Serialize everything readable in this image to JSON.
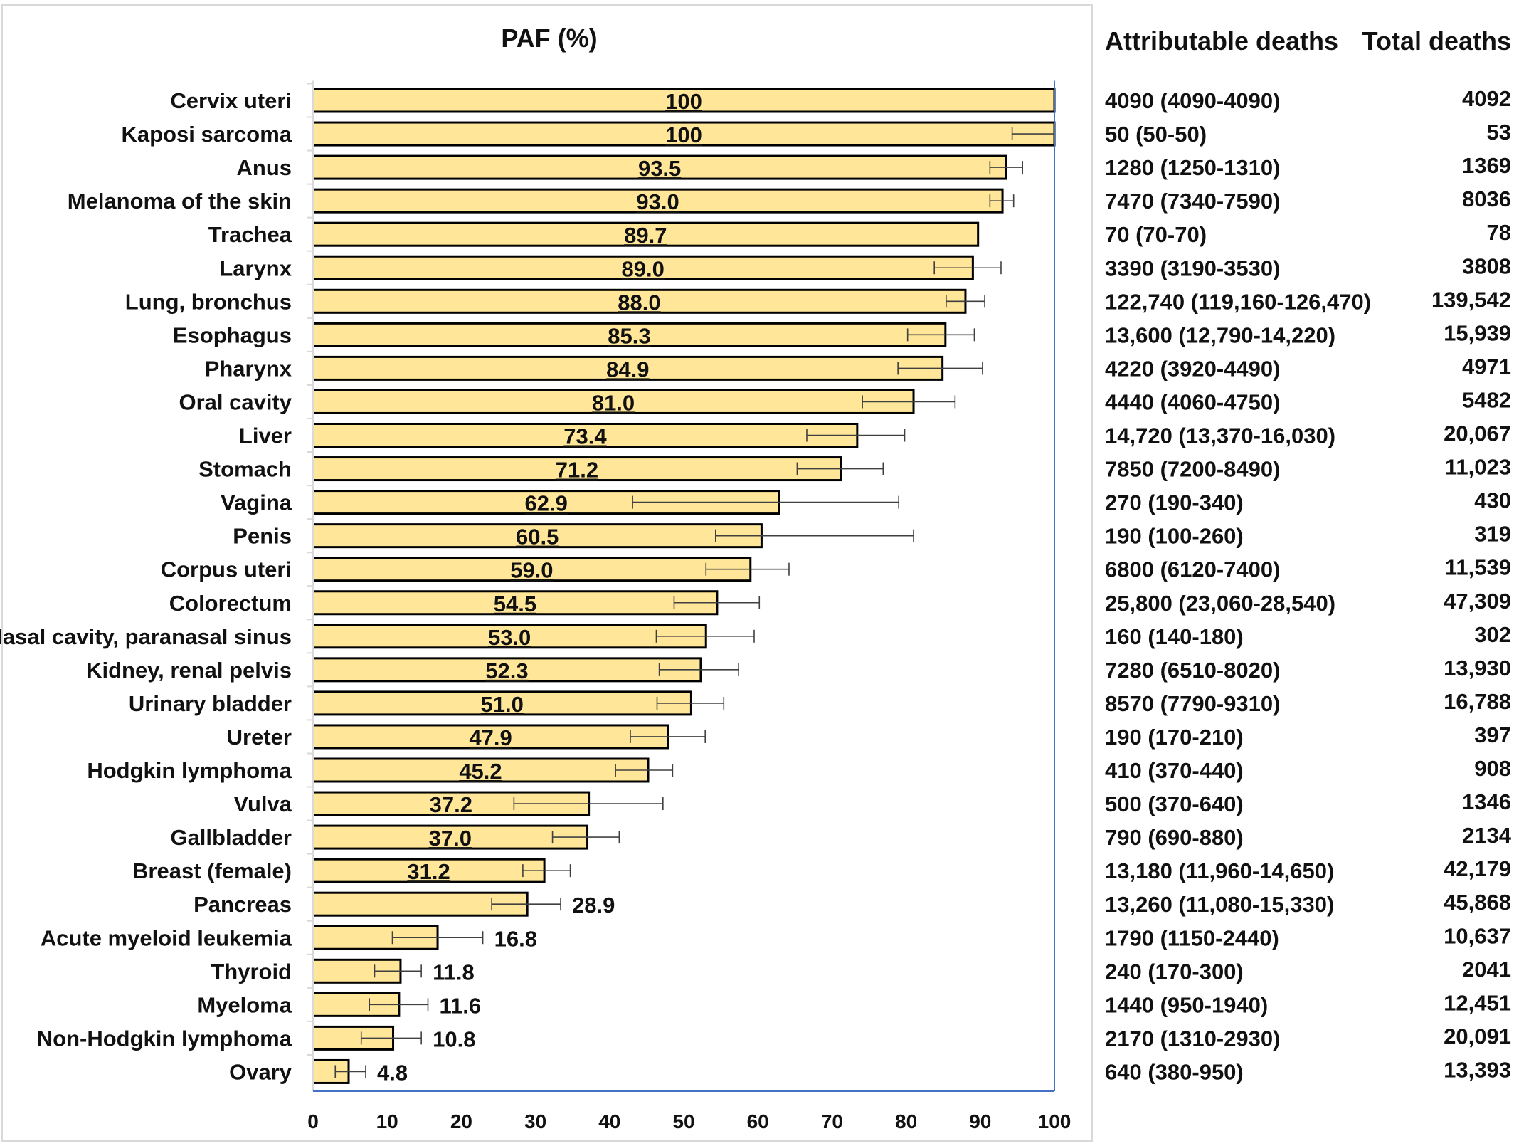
{
  "chart_data": {
    "type": "bar",
    "orientation": "horizontal",
    "title": "PAF (%)",
    "xlim": [
      0,
      100
    ],
    "xticks": [
      0,
      10,
      20,
      30,
      40,
      50,
      60,
      70,
      80,
      90,
      100
    ],
    "bar_color": "#ffe699",
    "bar_edge_color": "#000000",
    "axis_color": "#4472c4",
    "columns": {
      "attributable": "Attributable deaths",
      "total": "Total deaths"
    },
    "categories": [
      "Cervix uteri",
      "Kaposi sarcoma",
      "Anus",
      "Melanoma of the skin",
      "Trachea",
      "Larynx",
      "Lung, bronchus",
      "Esophagus",
      "Pharynx",
      "Oral cavity",
      "Liver",
      "Stomach",
      "Vagina",
      "Penis",
      "Corpus uteri",
      "Colorectum",
      "Nasal cavity, paranasal sinus",
      "Kidney, renal pelvis",
      "Urinary bladder",
      "Ureter",
      "Hodgkin lymphoma",
      "Vulva",
      "Gallbladder",
      "Breast (female)",
      "Pancreas",
      "Acute myeloid leukemia",
      "Thyroid",
      "Myeloma",
      "Non-Hodgkin lymphoma",
      "Ovary"
    ],
    "values": [
      100,
      100,
      93.5,
      93.0,
      89.7,
      89.0,
      88.0,
      85.3,
      84.9,
      81.0,
      73.4,
      71.2,
      62.9,
      60.5,
      59.0,
      54.5,
      53.0,
      52.3,
      51.0,
      47.9,
      45.2,
      37.2,
      37.0,
      31.2,
      28.9,
      16.8,
      11.8,
      11.6,
      10.8,
      4.8
    ],
    "value_labels": [
      "100",
      "100",
      "93.5",
      "93.0",
      "89.7",
      "89.0",
      "88.0",
      "85.3",
      "84.9",
      "81.0",
      "73.4",
      "71.2",
      "62.9",
      "60.5",
      "59.0",
      "54.5",
      "53.0",
      "52.3",
      "51.0",
      "47.9",
      "45.2",
      "37.2",
      "37.0",
      "31.2",
      "28.9",
      "16.8",
      "11.8",
      "11.6",
      "10.8",
      "4.8"
    ],
    "error_low": [
      100,
      94.3,
      91.3,
      91.3,
      89.7,
      83.8,
      85.4,
      80.2,
      78.9,
      74.1,
      66.6,
      65.3,
      43.1,
      54.3,
      53.0,
      48.7,
      46.3,
      46.7,
      46.4,
      42.8,
      40.8,
      27.1,
      32.3,
      28.3,
      24.1,
      10.7,
      8.3,
      7.6,
      6.5,
      3.0
    ],
    "error_high": [
      100,
      100,
      95.7,
      94.5,
      89.7,
      92.8,
      90.6,
      89.2,
      90.3,
      86.6,
      79.8,
      76.9,
      79.0,
      81.0,
      64.2,
      60.2,
      59.5,
      57.4,
      55.4,
      52.9,
      48.5,
      47.2,
      41.3,
      34.7,
      33.4,
      22.9,
      14.6,
      15.5,
      14.6,
      7.1
    ],
    "attributable_deaths": [
      "4090 (4090-4090)",
      "50 (50-50)",
      "1280 (1250-1310)",
      "7470 (7340-7590)",
      "70 (70-70)",
      "3390 (3190-3530)",
      "122,740 (119,160-126,470)",
      "13,600 (12,790-14,220)",
      "4220 (3920-4490)",
      "4440 (4060-4750)",
      "14,720 (13,370-16,030)",
      "7850 (7200-8490)",
      "270 (190-340)",
      "190 (100-260)",
      "6800 (6120-7400)",
      "25,800 (23,060-28,540)",
      "160 (140-180)",
      "7280 (6510-8020)",
      "8570 (7790-9310)",
      "190 (170-210)",
      "410 (370-440)",
      "500 (370-640)",
      "790 (690-880)",
      "13,180 (11,960-14,650)",
      "13,260 (11,080-15,330)",
      "1790 (1150-2440)",
      "240 (170-300)",
      "1440 (950-1940)",
      "2170 (1310-2930)",
      "640 (380-950)"
    ],
    "total_deaths": [
      "4092",
      "53",
      "1369",
      "8036",
      "78",
      "3808",
      "139,542",
      "15,939",
      "4971",
      "5482",
      "20,067",
      "11,023",
      "430",
      "319",
      "11,539",
      "47,309",
      "302",
      "13,930",
      "16,788",
      "397",
      "908",
      "1346",
      "2134",
      "42,179",
      "45,868",
      "10,637",
      "2041",
      "12,451",
      "20,091",
      "13,393"
    ]
  }
}
